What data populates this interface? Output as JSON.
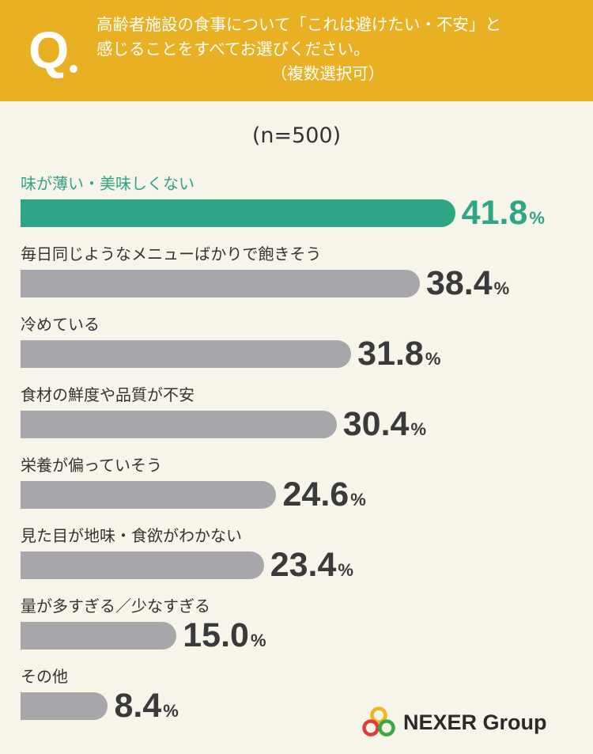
{
  "question": {
    "mark": "Q",
    "line1": "高齢者施設の食事について「これは避けたい・不安」と",
    "line2": "感じることをすべてお選びください。",
    "line3": "（複数選択可）"
  },
  "sample_size": "(n=500)",
  "brand": "NEXER Group",
  "colors": {
    "header": "#e8b022",
    "highlight": "#2ea686",
    "bar": "#a6a6ab",
    "background": "#f7f5e9"
  },
  "chart_data": {
    "type": "bar",
    "orientation": "horizontal",
    "unit": "%",
    "categories": [
      "味が薄い・美味しくない",
      "毎日同じようなメニューばかりで飽きそう",
      "冷めている",
      "食材の鮮度や品質が不安",
      "栄養が偏っていそう",
      "見た目が地味・食欲がわかない",
      "量が多すぎる／少なすぎる",
      "その他"
    ],
    "values": [
      41.8,
      38.4,
      31.8,
      30.4,
      24.6,
      23.4,
      15.0,
      8.4
    ],
    "value_labels": [
      "41.8",
      "38.4",
      "31.8",
      "30.4",
      "24.6",
      "23.4",
      "15.0",
      "8.4"
    ],
    "highlight_index": 0
  }
}
